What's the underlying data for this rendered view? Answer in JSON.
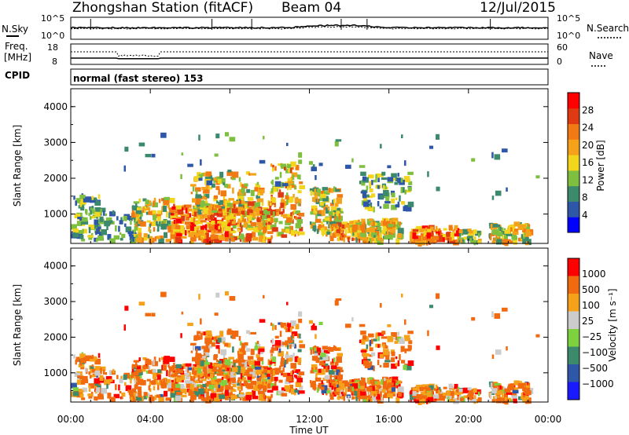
{
  "header": {
    "station": "Zhongshan Station (fitACF)",
    "beam": "Beam 04",
    "date": "12/Jul/2015"
  },
  "nsky_panel": {
    "left_label": "N.Sky",
    "left_ticks": [
      "10^5",
      "10^0"
    ],
    "right_label": "N.Search",
    "right_ticks": [
      "10^5",
      "10^0"
    ]
  },
  "freq_panel": {
    "left_label_1": "Freq.",
    "left_label_2": "[MHz]",
    "left_ticks": [
      "18",
      "8"
    ],
    "right_label": "Nave",
    "right_ticks": [
      "60",
      "0"
    ]
  },
  "cpid": {
    "label": "CPID",
    "text": "normal (fast stereo) 153"
  },
  "colors": {
    "power": [
      "#0000ff",
      "#2e57a8",
      "#3c8a6b",
      "#7fbf3f",
      "#f2d51d",
      "#f5a21a",
      "#f27a13",
      "#e03a12",
      "#ff0000"
    ],
    "velocity": [
      "#ff0000",
      "#f26a10",
      "#f5a21a",
      "#cccccc",
      "#7fd23f",
      "#3c8a6b",
      "#2e57a8",
      "#1a1aff"
    ]
  },
  "chart_data": [
    {
      "type": "heatmap",
      "panel": "power",
      "ylabel": "Slant Range [km]",
      "ylim": [
        180,
        4500
      ],
      "yticks": [
        1000,
        2000,
        3000,
        4000
      ],
      "colorbar_label": "Power [dB]",
      "colorbar_ticks": [
        "4",
        "8",
        "12",
        "16",
        "20",
        "24",
        "28"
      ],
      "zlim": [
        0,
        32
      ]
    },
    {
      "type": "heatmap",
      "panel": "velocity",
      "ylabel": "Slant Range [km]",
      "ylim": [
        180,
        4500
      ],
      "yticks": [
        1000,
        2000,
        3000,
        4000
      ],
      "colorbar_label": "Velocity [m s⁻¹]",
      "colorbar_ticks": [
        "1000",
        "500",
        "100",
        "25",
        "−25",
        "−100",
        "−500",
        "−1000"
      ]
    }
  ],
  "x_axis": {
    "label": "Time UT",
    "range_hours": [
      0,
      24
    ],
    "tick_labels": [
      "00:00",
      "04:00",
      "08:00",
      "12:00",
      "16:00",
      "20:00",
      "00:00"
    ]
  }
}
